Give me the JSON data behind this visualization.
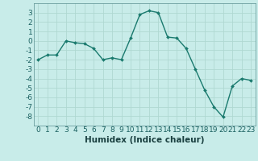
{
  "x": [
    0,
    1,
    2,
    3,
    4,
    5,
    6,
    7,
    8,
    9,
    10,
    11,
    12,
    13,
    14,
    15,
    16,
    17,
    18,
    19,
    20,
    21,
    22,
    23
  ],
  "y": [
    -2,
    -1.5,
    -1.5,
    0,
    -0.2,
    -0.3,
    -0.8,
    -2,
    -1.8,
    -2,
    0.3,
    2.8,
    3.2,
    3.0,
    0.4,
    0.3,
    -0.8,
    -3.0,
    -5.2,
    -7.0,
    -8.1,
    -4.8,
    -4.0,
    -4.2
  ],
  "line_color": "#1a7a6e",
  "marker": "D",
  "markersize": 2.0,
  "linewidth": 1.0,
  "bg_color": "#c8ece9",
  "grid_color": "#afd8d2",
  "xlabel": "Humidex (Indice chaleur)",
  "xlim": [
    -0.5,
    23.5
  ],
  "ylim": [
    -9,
    4
  ],
  "yticks": [
    -8,
    -7,
    -6,
    -5,
    -4,
    -3,
    -2,
    -1,
    0,
    1,
    2,
    3
  ],
  "xticks": [
    0,
    1,
    2,
    3,
    4,
    5,
    6,
    7,
    8,
    9,
    10,
    11,
    12,
    13,
    14,
    15,
    16,
    17,
    18,
    19,
    20,
    21,
    22,
    23
  ],
  "xlabel_fontsize": 7.5,
  "tick_fontsize": 6.5
}
